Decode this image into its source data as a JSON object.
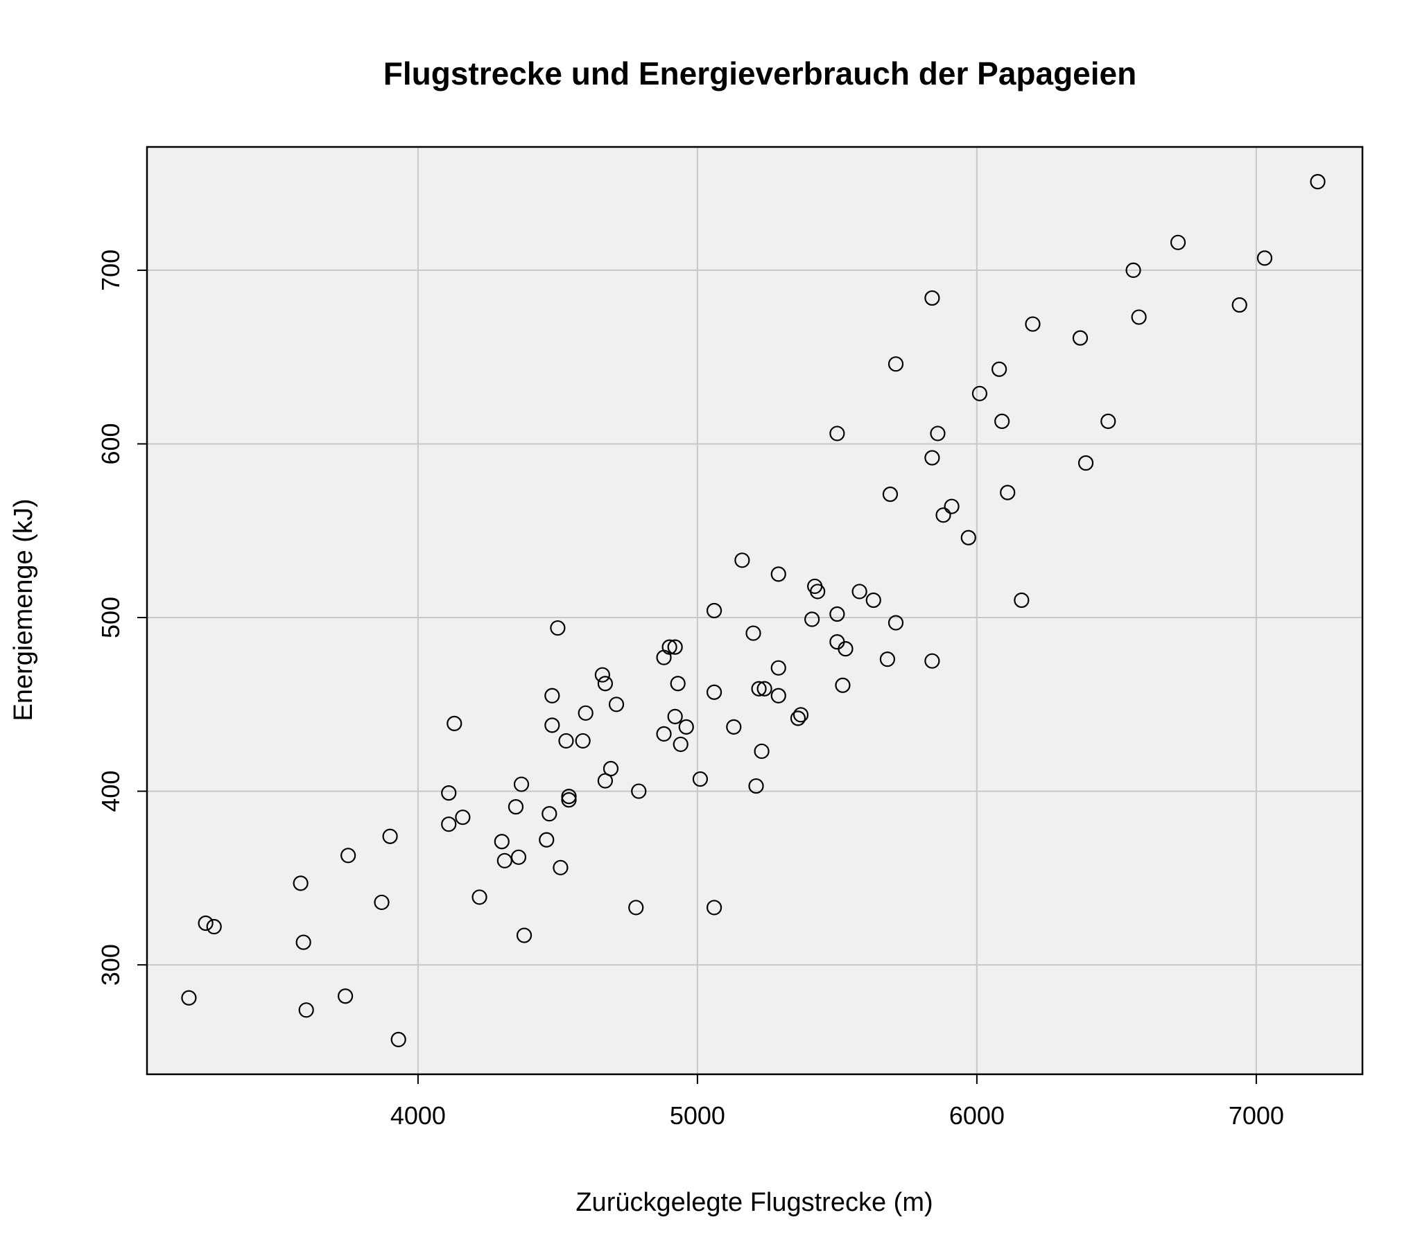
{
  "chart_data": {
    "type": "scatter",
    "title": "Flugstrecke und Energieverbrauch der Papageien",
    "xlabel": "Zurückgelegte Flugstrecke (m)",
    "ylabel": "Energiemenge (kJ)",
    "xlim": [
      3030,
      7380
    ],
    "ylim": [
      237,
      771
    ],
    "x_ticks": [
      4000,
      5000,
      6000,
      7000
    ],
    "y_ticks": [
      300,
      400,
      500,
      600,
      700
    ],
    "grid": true,
    "background_color": "#f0f0f0",
    "grid_color": "#c8c8c8",
    "marker": "open-circle",
    "points": [
      {
        "x": 3180,
        "y": 281
      },
      {
        "x": 3240,
        "y": 324
      },
      {
        "x": 3270,
        "y": 322
      },
      {
        "x": 3580,
        "y": 347
      },
      {
        "x": 3590,
        "y": 313
      },
      {
        "x": 3600,
        "y": 274
      },
      {
        "x": 3740,
        "y": 282
      },
      {
        "x": 3750,
        "y": 363
      },
      {
        "x": 3870,
        "y": 336
      },
      {
        "x": 3900,
        "y": 374
      },
      {
        "x": 3930,
        "y": 257
      },
      {
        "x": 4110,
        "y": 399
      },
      {
        "x": 4110,
        "y": 381
      },
      {
        "x": 4130,
        "y": 439
      },
      {
        "x": 4160,
        "y": 385
      },
      {
        "x": 4220,
        "y": 339
      },
      {
        "x": 4300,
        "y": 371
      },
      {
        "x": 4310,
        "y": 360
      },
      {
        "x": 4350,
        "y": 391
      },
      {
        "x": 4360,
        "y": 362
      },
      {
        "x": 4370,
        "y": 404
      },
      {
        "x": 4380,
        "y": 317
      },
      {
        "x": 4460,
        "y": 372
      },
      {
        "x": 4470,
        "y": 387
      },
      {
        "x": 4480,
        "y": 455
      },
      {
        "x": 4480,
        "y": 438
      },
      {
        "x": 4500,
        "y": 494
      },
      {
        "x": 4510,
        "y": 356
      },
      {
        "x": 4530,
        "y": 429
      },
      {
        "x": 4540,
        "y": 397
      },
      {
        "x": 4540,
        "y": 395
      },
      {
        "x": 4590,
        "y": 429
      },
      {
        "x": 4600,
        "y": 445
      },
      {
        "x": 4660,
        "y": 467
      },
      {
        "x": 4670,
        "y": 462
      },
      {
        "x": 4670,
        "y": 406
      },
      {
        "x": 4690,
        "y": 413
      },
      {
        "x": 4710,
        "y": 450
      },
      {
        "x": 4780,
        "y": 333
      },
      {
        "x": 4790,
        "y": 400
      },
      {
        "x": 4880,
        "y": 477
      },
      {
        "x": 4880,
        "y": 433
      },
      {
        "x": 4900,
        "y": 483
      },
      {
        "x": 4920,
        "y": 483
      },
      {
        "x": 4920,
        "y": 443
      },
      {
        "x": 4930,
        "y": 462
      },
      {
        "x": 4940,
        "y": 427
      },
      {
        "x": 4960,
        "y": 437
      },
      {
        "x": 5010,
        "y": 407
      },
      {
        "x": 5060,
        "y": 504
      },
      {
        "x": 5060,
        "y": 457
      },
      {
        "x": 5060,
        "y": 333
      },
      {
        "x": 5130,
        "y": 437
      },
      {
        "x": 5160,
        "y": 533
      },
      {
        "x": 5200,
        "y": 491
      },
      {
        "x": 5210,
        "y": 403
      },
      {
        "x": 5220,
        "y": 459
      },
      {
        "x": 5230,
        "y": 423
      },
      {
        "x": 5240,
        "y": 459
      },
      {
        "x": 5290,
        "y": 525
      },
      {
        "x": 5290,
        "y": 471
      },
      {
        "x": 5290,
        "y": 455
      },
      {
        "x": 5360,
        "y": 442
      },
      {
        "x": 5370,
        "y": 444
      },
      {
        "x": 5410,
        "y": 499
      },
      {
        "x": 5420,
        "y": 518
      },
      {
        "x": 5430,
        "y": 515
      },
      {
        "x": 5500,
        "y": 606
      },
      {
        "x": 5500,
        "y": 502
      },
      {
        "x": 5500,
        "y": 486
      },
      {
        "x": 5520,
        "y": 461
      },
      {
        "x": 5530,
        "y": 482
      },
      {
        "x": 5580,
        "y": 515
      },
      {
        "x": 5630,
        "y": 510
      },
      {
        "x": 5680,
        "y": 476
      },
      {
        "x": 5690,
        "y": 571
      },
      {
        "x": 5710,
        "y": 646
      },
      {
        "x": 5710,
        "y": 497
      },
      {
        "x": 5840,
        "y": 684
      },
      {
        "x": 5840,
        "y": 592
      },
      {
        "x": 5840,
        "y": 475
      },
      {
        "x": 5860,
        "y": 606
      },
      {
        "x": 5880,
        "y": 559
      },
      {
        "x": 5910,
        "y": 564
      },
      {
        "x": 5970,
        "y": 546
      },
      {
        "x": 6010,
        "y": 629
      },
      {
        "x": 6080,
        "y": 643
      },
      {
        "x": 6090,
        "y": 613
      },
      {
        "x": 6110,
        "y": 572
      },
      {
        "x": 6160,
        "y": 510
      },
      {
        "x": 6200,
        "y": 669
      },
      {
        "x": 6370,
        "y": 661
      },
      {
        "x": 6390,
        "y": 589
      },
      {
        "x": 6470,
        "y": 613
      },
      {
        "x": 6560,
        "y": 700
      },
      {
        "x": 6580,
        "y": 673
      },
      {
        "x": 6720,
        "y": 716
      },
      {
        "x": 6940,
        "y": 680
      },
      {
        "x": 7030,
        "y": 707
      },
      {
        "x": 7220,
        "y": 751
      }
    ]
  }
}
